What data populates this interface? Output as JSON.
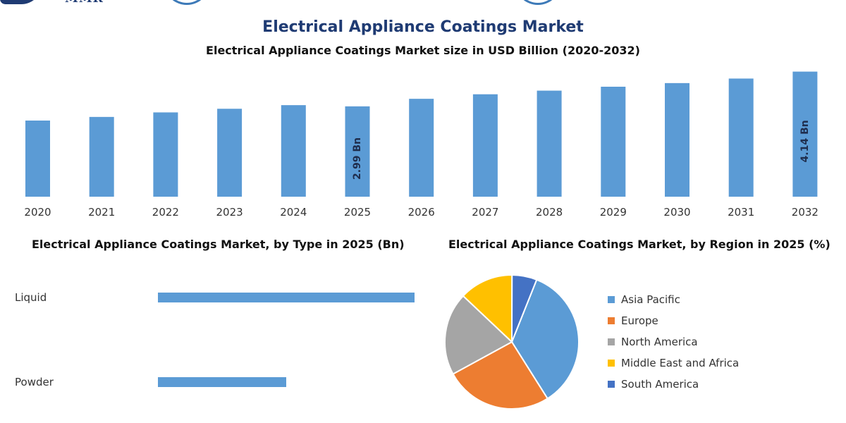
{
  "brand": {
    "name": "MMR"
  },
  "page": {
    "title": "Electrical Appliance Coatings Market",
    "subtitle": "Electrical Appliance Coatings Market size in USD Billion (2020-2032)"
  },
  "colors": {
    "bar": "#5b9bd5",
    "title": "#1f3b73"
  },
  "chart_data": [
    {
      "type": "bar",
      "title": "Electrical Appliance Coatings Market size in USD Billion (2020-2032)",
      "categories": [
        "2020",
        "2021",
        "2022",
        "2023",
        "2024",
        "2025",
        "2026",
        "2027",
        "2028",
        "2029",
        "2030",
        "2031",
        "2032"
      ],
      "values": [
        2.52,
        2.64,
        2.79,
        2.91,
        3.03,
        2.99,
        3.24,
        3.39,
        3.51,
        3.64,
        3.76,
        3.91,
        4.14
      ],
      "data_labels": [
        {
          "category": "2025",
          "text": "2.99 Bn"
        },
        {
          "category": "2032",
          "text": "4.14 Bn"
        }
      ],
      "ylim": [
        0,
        4.2
      ],
      "grid": false
    },
    {
      "type": "bar",
      "orientation": "horizontal",
      "title": "Electrical Appliance Coatings Market, by Type in 2025 (Bn)",
      "categories": [
        "Liquid",
        "Powder"
      ],
      "values": [
        2.0,
        1.0
      ],
      "grid": false
    },
    {
      "type": "pie",
      "title": "Electrical Appliance Coatings Market, by Region in 2025 (%)",
      "labels": [
        "Asia Pacific",
        "Europe",
        "North America",
        "Middle East and Africa",
        "South America"
      ],
      "values": [
        35,
        26,
        20,
        13,
        6
      ],
      "colors": [
        "#5b9bd5",
        "#ed7d31",
        "#a5a5a5",
        "#ffc000",
        "#4472c4"
      ],
      "legend_position": "right"
    }
  ]
}
